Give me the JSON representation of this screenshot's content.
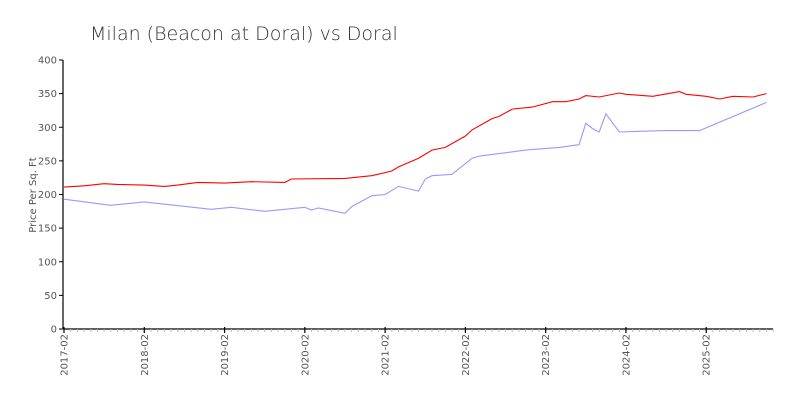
{
  "chart_data": {
    "type": "line",
    "title": "Milan (Beacon at Doral) vs Doral",
    "xlabel": "",
    "ylabel": "Price Per Sq. Ft",
    "ylim": [
      0,
      400
    ],
    "yticks": [
      0,
      50,
      100,
      150,
      200,
      250,
      300,
      350,
      400
    ],
    "xlim": [
      "2017-02",
      "2025-12"
    ],
    "xticks": [
      "2017-02",
      "2018-02",
      "2019-02",
      "2020-02",
      "2021-02",
      "2022-02",
      "2023-02",
      "2024-02",
      "2025-02"
    ],
    "grid": false,
    "series": [
      {
        "name": "Milan (Beacon at Doral)",
        "color": "#ff0000",
        "points": [
          [
            "2017-02",
            211
          ],
          [
            "2017-05",
            213
          ],
          [
            "2017-08",
            216
          ],
          [
            "2017-10",
            215
          ],
          [
            "2018-02",
            214
          ],
          [
            "2018-05",
            212
          ],
          [
            "2018-07",
            214
          ],
          [
            "2018-10",
            218
          ],
          [
            "2019-02",
            217
          ],
          [
            "2019-06",
            219
          ],
          [
            "2019-11",
            218
          ],
          [
            "2019-12",
            223
          ],
          [
            "2020-08",
            224
          ],
          [
            "2020-12",
            228
          ],
          [
            "2021-03",
            235
          ],
          [
            "2021-04",
            241
          ],
          [
            "2021-07",
            254
          ],
          [
            "2021-09",
            266
          ],
          [
            "2021-11",
            270
          ],
          [
            "2022-02",
            287
          ],
          [
            "2022-03",
            296
          ],
          [
            "2022-06",
            313
          ],
          [
            "2022-07",
            316
          ],
          [
            "2022-09",
            327
          ],
          [
            "2022-12",
            330
          ],
          [
            "2023-03",
            338
          ],
          [
            "2023-05",
            338
          ],
          [
            "2023-07",
            342
          ],
          [
            "2023-08",
            347
          ],
          [
            "2023-10",
            345
          ],
          [
            "2024-01",
            351
          ],
          [
            "2024-02",
            349
          ],
          [
            "2024-06",
            346
          ],
          [
            "2024-10",
            353
          ],
          [
            "2024-11",
            349
          ],
          [
            "2025-02",
            346
          ],
          [
            "2025-04",
            342
          ],
          [
            "2025-06",
            346
          ],
          [
            "2025-09",
            345
          ],
          [
            "2025-11",
            350
          ]
        ]
      },
      {
        "name": "Doral",
        "color": "#9999ff",
        "points": [
          [
            "2017-02",
            193
          ],
          [
            "2017-09",
            184
          ],
          [
            "2018-02",
            189
          ],
          [
            "2018-12",
            178
          ],
          [
            "2019-03",
            181
          ],
          [
            "2019-08",
            175
          ],
          [
            "2020-02",
            181
          ],
          [
            "2020-03",
            177
          ],
          [
            "2020-04",
            180
          ],
          [
            "2020-08",
            172
          ],
          [
            "2020-09",
            182
          ],
          [
            "2020-12",
            198
          ],
          [
            "2021-02",
            200
          ],
          [
            "2021-04",
            212
          ],
          [
            "2021-07",
            205
          ],
          [
            "2021-08",
            223
          ],
          [
            "2021-09",
            228
          ],
          [
            "2021-12",
            230
          ],
          [
            "2022-03",
            254
          ],
          [
            "2022-04",
            257
          ],
          [
            "2022-11",
            266
          ],
          [
            "2023-04",
            270
          ],
          [
            "2023-07",
            274
          ],
          [
            "2023-08",
            306
          ],
          [
            "2023-09",
            298
          ],
          [
            "2023-10",
            293
          ],
          [
            "2023-11",
            320
          ],
          [
            "2024-01",
            293
          ],
          [
            "2024-04",
            294
          ],
          [
            "2024-08",
            295
          ],
          [
            "2025-01",
            295
          ],
          [
            "2025-11",
            337
          ]
        ]
      }
    ]
  }
}
